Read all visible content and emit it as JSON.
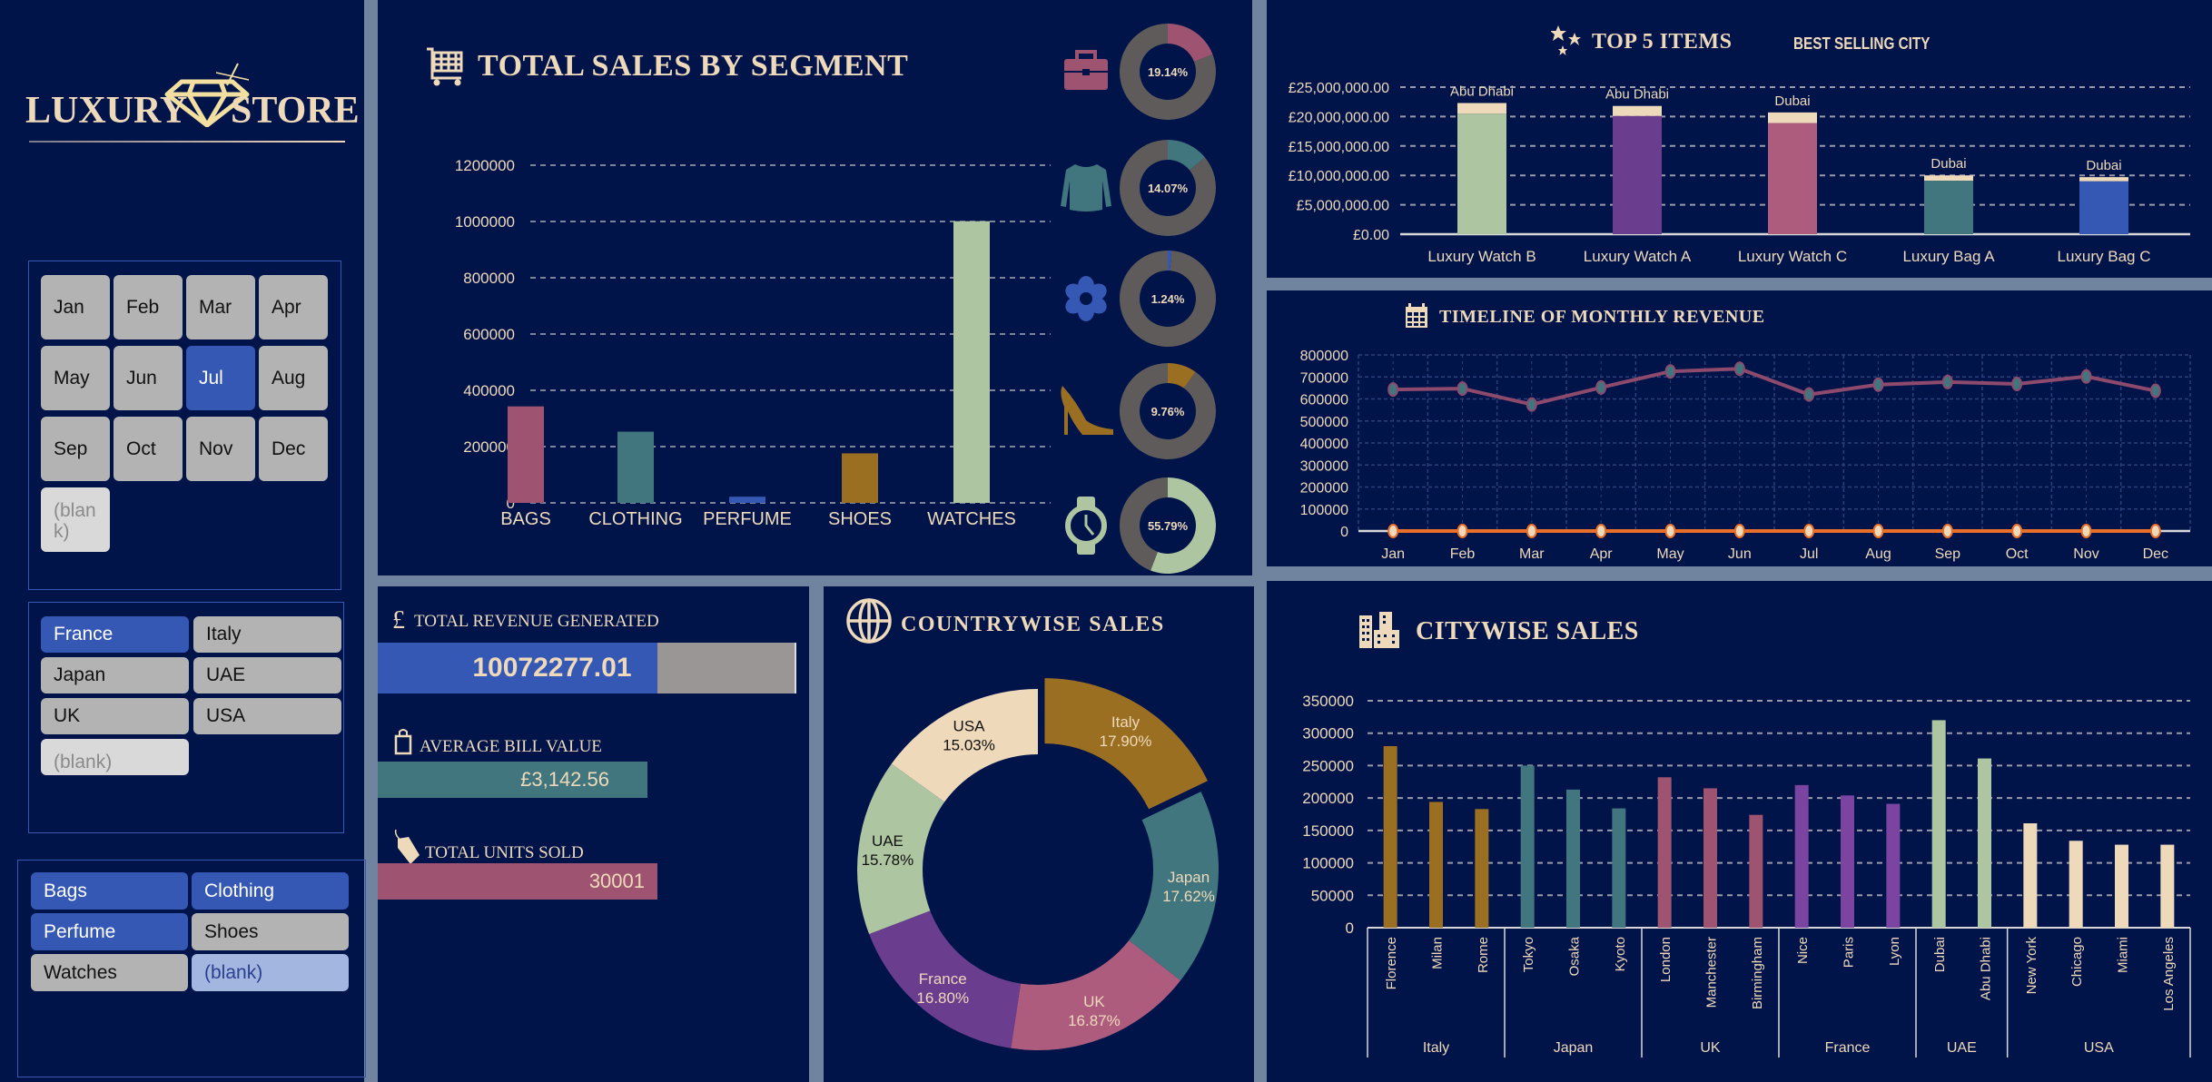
{
  "logo": {
    "left": "LUXURY",
    "right": "STORE"
  },
  "colors": {
    "background": "#00144a",
    "cream": "#efd9bb",
    "selected": "#3558b5",
    "unselected": "#b3b3b3",
    "gray_ring": "#5f5b5b"
  },
  "month_slicer": {
    "items": [
      {
        "label": "Jan",
        "state": "off"
      },
      {
        "label": "Feb",
        "state": "off"
      },
      {
        "label": "Mar",
        "state": "off"
      },
      {
        "label": "Apr",
        "state": "off"
      },
      {
        "label": "May",
        "state": "off"
      },
      {
        "label": "Jun",
        "state": "off"
      },
      {
        "label": "Jul",
        "state": "sel"
      },
      {
        "label": "Aug",
        "state": "off"
      },
      {
        "label": "Sep",
        "state": "off"
      },
      {
        "label": "Oct",
        "state": "off"
      },
      {
        "label": "Nov",
        "state": "off"
      },
      {
        "label": "Dec",
        "state": "off"
      },
      {
        "label": "(blank)",
        "state": "blank"
      }
    ]
  },
  "country_slicer": {
    "items": [
      {
        "label": "France",
        "state": "sel"
      },
      {
        "label": "Italy",
        "state": "off"
      },
      {
        "label": "Japan",
        "state": "off"
      },
      {
        "label": "UAE",
        "state": "off"
      },
      {
        "label": "UK",
        "state": "off"
      },
      {
        "label": "USA",
        "state": "off"
      },
      {
        "label": "(blank)",
        "state": "blank"
      }
    ]
  },
  "segment_slicer": {
    "items": [
      {
        "label": "Bags",
        "state": "sel"
      },
      {
        "label": "Clothing",
        "state": "sel"
      },
      {
        "label": "Perfume",
        "state": "sel"
      },
      {
        "label": "Shoes",
        "state": "off"
      },
      {
        "label": "Watches",
        "state": "off"
      },
      {
        "label": "(blank)",
        "state": "blanksel"
      }
    ]
  },
  "kpis": {
    "revenue": {
      "label": "TOTAL REVENUE GENERATED",
      "icon": "pound-icon",
      "value": "10072277.01",
      "fill": 0.67
    },
    "avg_bill": {
      "label": "AVERAGE BILL VALUE",
      "icon": "shopping-bag-icon",
      "value": "£3,142.56"
    },
    "units": {
      "label": "TOTAL UNITS SOLD",
      "icon": "price-tag-icon",
      "value": "30001"
    }
  },
  "chart_data": [
    {
      "id": "segment",
      "type": "bar",
      "title": "TOTAL SALES BY SEGMENT",
      "categories": [
        "BAGS",
        "CLOTHING",
        "PERFUME",
        "SHOES",
        "WATCHES"
      ],
      "values": [
        343000,
        253000,
        22000,
        176000,
        1001000
      ],
      "colors": [
        "#9e5470",
        "#41767e",
        "#3558b5",
        "#9a6f21",
        "#adc5a0"
      ],
      "ylim": [
        0,
        1200000
      ],
      "yticks": [
        "0",
        "200000",
        "400000",
        "600000",
        "800000",
        "1000000",
        "1200000"
      ],
      "grid": true
    },
    {
      "id": "segment_share",
      "type": "pie",
      "labels": [
        "19.14%",
        "14.07%",
        "1.24%",
        "9.76%",
        "55.79%"
      ],
      "values": [
        19.14,
        14.07,
        1.24,
        9.76,
        55.79
      ],
      "icons": [
        "briefcase-icon",
        "shirt-icon",
        "flower-icon",
        "high-heel-icon",
        "watch-icon"
      ],
      "colors": [
        "#9e5470",
        "#41767e",
        "#3558b5",
        "#9a6f21",
        "#adc5a0"
      ]
    },
    {
      "id": "top5",
      "type": "bar",
      "title": "TOP 5 ITEMS",
      "subtitle": "BEST SELLING CITY",
      "categories": [
        "Luxury Watch B",
        "Luxury Watch A",
        "Luxury Watch C",
        "Luxury Bag A",
        "Luxury Bag C"
      ],
      "series": [
        {
          "values": [
            20500000,
            20100000,
            18900000,
            9100000,
            9000000
          ],
          "colors": [
            "#adc5a0",
            "#6b3d8e",
            "#ad5c7e",
            "#41767e",
            "#3558b5"
          ]
        },
        {
          "values": [
            1800000,
            1700000,
            1800000,
            900000,
            700000
          ],
          "color": "#efd9bb"
        }
      ],
      "data_labels": [
        "Abu Dhabi",
        "Abu Dhabi",
        "Dubai",
        "Dubai",
        "Dubai"
      ],
      "ylim": [
        0,
        25000000
      ],
      "yticks": [
        "£0.00",
        "£5,000,000.00",
        "£10,000,000.00",
        "£15,000,000.00",
        "£20,000,000.00",
        "£25,000,000.00"
      ],
      "grid": true
    },
    {
      "id": "timeline",
      "type": "line",
      "title": "TIMELINE OF MONTHLY REVENUE",
      "categories": [
        "Jan",
        "Feb",
        "Mar",
        "Apr",
        "May",
        "Jun",
        "Jul",
        "Aug",
        "Sep",
        "Oct",
        "Nov",
        "Dec"
      ],
      "series": [
        {
          "values": [
            643000,
            647000,
            575000,
            652000,
            725000,
            737000,
            620000,
            665000,
            677000,
            668000,
            702000,
            637000
          ],
          "color": "#8e4a6d",
          "marker": "#41767e"
        },
        {
          "values": [
            0,
            0,
            0,
            0,
            0,
            0,
            0,
            0,
            0,
            0,
            0,
            0
          ],
          "color": "#e8702a",
          "marker": "#efd9bb"
        }
      ],
      "ylim": [
        0,
        800000
      ],
      "yticks": [
        "0",
        "100000",
        "200000",
        "300000",
        "400000",
        "500000",
        "600000",
        "700000",
        "800000"
      ],
      "grid": true
    },
    {
      "id": "country",
      "type": "pie",
      "title": "COUNTRYWISE SALES",
      "labels": [
        "Italy",
        "Japan",
        "UK",
        "France",
        "UAE",
        "USA"
      ],
      "values": [
        17.9,
        17.62,
        16.87,
        16.8,
        15.78,
        15.03
      ],
      "value_labels": [
        "17.90%",
        "17.62%",
        "16.87%",
        "16.80%",
        "15.78%",
        "15.03%"
      ],
      "colors": [
        "#9a6f21",
        "#41767e",
        "#ad5c7e",
        "#6b3d8e",
        "#adc5a0",
        "#efd9bb"
      ],
      "label_colors": [
        "#efd9bb",
        "#efd9bb",
        "#efd9bb",
        "#efd9bb",
        "#111111",
        "#111111"
      ]
    },
    {
      "id": "city",
      "type": "bar",
      "title": "CITYWISE SALES",
      "groups": [
        {
          "name": "Italy",
          "color": "#9a6f21",
          "categories": [
            "Florence",
            "Milan",
            "Rome"
          ],
          "values": [
            280000,
            194000,
            183000
          ]
        },
        {
          "name": "Japan",
          "color": "#41767e",
          "categories": [
            "Tokyo",
            "Osaka",
            "Kyoto"
          ],
          "values": [
            250000,
            213000,
            184000
          ]
        },
        {
          "name": "UK",
          "color": "#9e5470",
          "categories": [
            "London",
            "Manchester",
            "Birmingham"
          ],
          "values": [
            232000,
            215000,
            174000
          ]
        },
        {
          "name": "France",
          "color": "#7a44a0",
          "categories": [
            "Nice",
            "Paris",
            "Lyon"
          ],
          "values": [
            220000,
            204000,
            191000
          ]
        },
        {
          "name": "UAE",
          "color": "#adc5a0",
          "categories": [
            "Dubai",
            "Abu Dhabi"
          ],
          "values": [
            320000,
            261000
          ]
        },
        {
          "name": "USA",
          "color": "#efd9bb",
          "categories": [
            "New York",
            "Chicago",
            "Miami",
            "Los Angeles"
          ],
          "values": [
            161000,
            134000,
            128000,
            128000
          ]
        }
      ],
      "ylim": [
        0,
        350000
      ],
      "yticks": [
        "0",
        "50000",
        "100000",
        "150000",
        "200000",
        "250000",
        "300000",
        "350000"
      ],
      "grid": true
    }
  ]
}
